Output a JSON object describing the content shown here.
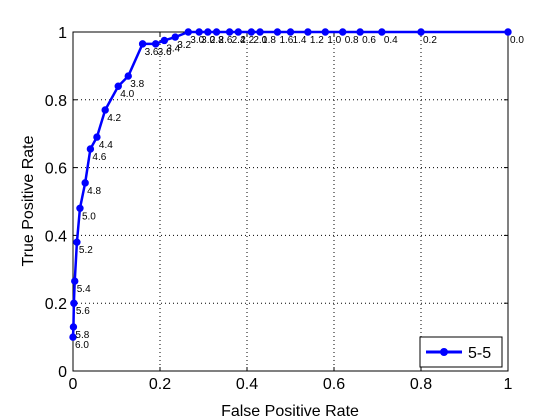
{
  "chart_data": {
    "type": "line",
    "title": "",
    "xlabel": "False Positive Rate",
    "ylabel": "True Positive Rate",
    "xlim": [
      0,
      1
    ],
    "ylim": [
      0,
      1
    ],
    "x_ticks": [
      "0",
      "0.2",
      "0.4",
      "0.6",
      "0.8",
      "1"
    ],
    "y_ticks": [
      "0",
      "0.2",
      "0.4",
      "0.6",
      "0.8",
      "1"
    ],
    "grid": true,
    "legend_position": "bottom-right",
    "colors": {
      "series": "#0000ff",
      "axes": "#000000",
      "grid": "#000000",
      "background": "#ffffff"
    },
    "series": [
      {
        "name": "5-5",
        "points": [
          {
            "x": 1.0,
            "y": 1.0,
            "label": "0.0"
          },
          {
            "x": 0.8,
            "y": 1.0,
            "label": "0.2"
          },
          {
            "x": 0.71,
            "y": 1.0,
            "label": "0.4"
          },
          {
            "x": 0.66,
            "y": 1.0,
            "label": "0.6"
          },
          {
            "x": 0.62,
            "y": 1.0,
            "label": "0.8"
          },
          {
            "x": 0.58,
            "y": 1.0,
            "label": "1.0"
          },
          {
            "x": 0.54,
            "y": 1.0,
            "label": "1.2"
          },
          {
            "x": 0.5,
            "y": 1.0,
            "label": "1.4"
          },
          {
            "x": 0.47,
            "y": 1.0,
            "label": "1.6"
          },
          {
            "x": 0.43,
            "y": 1.0,
            "label": "1.8"
          },
          {
            "x": 0.41,
            "y": 1.0,
            "label": "2.0"
          },
          {
            "x": 0.38,
            "y": 1.0,
            "label": "2.2"
          },
          {
            "x": 0.36,
            "y": 1.0,
            "label": "2.4"
          },
          {
            "x": 0.33,
            "y": 1.0,
            "label": "2.6"
          },
          {
            "x": 0.31,
            "y": 1.0,
            "label": "2.8"
          },
          {
            "x": 0.29,
            "y": 1.0,
            "label": "3.0"
          },
          {
            "x": 0.265,
            "y": 1.0,
            "label": "3.0"
          },
          {
            "x": 0.235,
            "y": 0.985,
            "label": "3.2"
          },
          {
            "x": 0.21,
            "y": 0.975,
            "label": "3.4"
          },
          {
            "x": 0.19,
            "y": 0.965,
            "label": "3.6"
          },
          {
            "x": 0.16,
            "y": 0.965,
            "label": "3.6"
          },
          {
            "x": 0.127,
            "y": 0.87,
            "label": "3.8"
          },
          {
            "x": 0.104,
            "y": 0.84,
            "label": "4.0"
          },
          {
            "x": 0.074,
            "y": 0.77,
            "label": "4.2"
          },
          {
            "x": 0.055,
            "y": 0.69,
            "label": "4.4"
          },
          {
            "x": 0.04,
            "y": 0.655,
            "label": "4.6"
          },
          {
            "x": 0.028,
            "y": 0.555,
            "label": "4.8"
          },
          {
            "x": 0.016,
            "y": 0.48,
            "label": "5.0"
          },
          {
            "x": 0.009,
            "y": 0.38,
            "label": "5.2"
          },
          {
            "x": 0.004,
            "y": 0.265,
            "label": "5.4"
          },
          {
            "x": 0.002,
            "y": 0.2,
            "label": "5.6"
          },
          {
            "x": 0.001,
            "y": 0.13,
            "label": "5.8"
          },
          {
            "x": 0.0,
            "y": 0.1,
            "label": "6.0"
          }
        ]
      }
    ]
  }
}
